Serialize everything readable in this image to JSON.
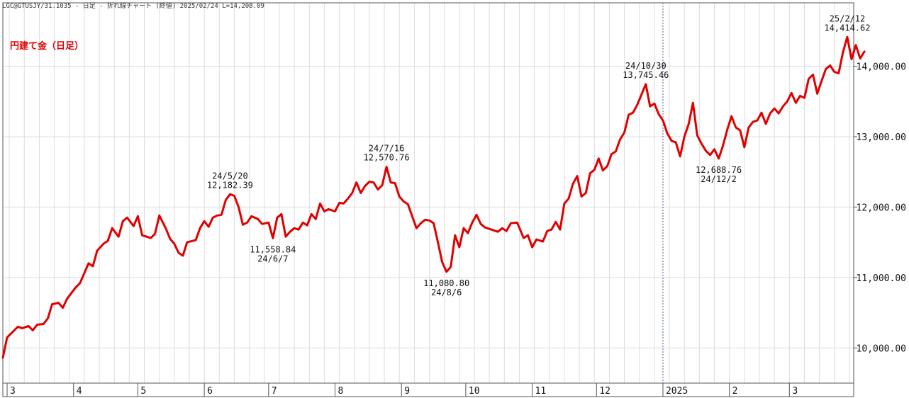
{
  "header": {
    "info": "LGC@GTUSJY/31.1035 - 日足 - 折れ線チャート (終値)  2025/02/24 L=14,208.09"
  },
  "chart_data": {
    "type": "line",
    "title": "円建て金（日足）",
    "ylim": [
      9500,
      14900
    ],
    "yticks": [
      10000,
      11000,
      12000,
      13000,
      14000
    ],
    "ytick_labels": [
      "10,000.00",
      "11,000.00",
      "12,000.00",
      "13,000.00",
      "14,000.00"
    ],
    "xlim": [
      "2024-02-28",
      "2025-03-31"
    ],
    "xticks": [
      {
        "date": "2024-03-01",
        "label": "3"
      },
      {
        "date": "2024-04-01",
        "label": "4"
      },
      {
        "date": "2024-05-01",
        "label": "5"
      },
      {
        "date": "2024-06-01",
        "label": "6"
      },
      {
        "date": "2024-07-01",
        "label": "7"
      },
      {
        "date": "2024-08-01",
        "label": "8"
      },
      {
        "date": "2024-09-01",
        "label": "9"
      },
      {
        "date": "2024-10-01",
        "label": "10"
      },
      {
        "date": "2024-11-01",
        "label": "11"
      },
      {
        "date": "2024-12-01",
        "label": "12"
      },
      {
        "date": "2025-01-01",
        "label": "2025"
      },
      {
        "date": "2025-02-01",
        "label": "2"
      },
      {
        "date": "2025-03-01",
        "label": "3"
      }
    ],
    "year_divider": "2025-01-01",
    "grid": true,
    "line_color": "#e00000",
    "series": [
      {
        "points": [
          [
            "2024-02-28",
            9860
          ],
          [
            "2024-03-01",
            10150
          ],
          [
            "2024-03-04",
            10240
          ],
          [
            "2024-03-06",
            10300
          ],
          [
            "2024-03-08",
            10280
          ],
          [
            "2024-03-11",
            10310
          ],
          [
            "2024-03-13",
            10250
          ],
          [
            "2024-03-15",
            10330
          ],
          [
            "2024-03-18",
            10340
          ],
          [
            "2024-03-20",
            10420
          ],
          [
            "2024-03-22",
            10620
          ],
          [
            "2024-03-25",
            10640
          ],
          [
            "2024-03-27",
            10570
          ],
          [
            "2024-03-29",
            10700
          ],
          [
            "2024-04-02",
            10860
          ],
          [
            "2024-04-04",
            10920
          ],
          [
            "2024-04-08",
            11200
          ],
          [
            "2024-04-10",
            11160
          ],
          [
            "2024-04-12",
            11380
          ],
          [
            "2024-04-15",
            11480
          ],
          [
            "2024-04-17",
            11520
          ],
          [
            "2024-04-19",
            11700
          ],
          [
            "2024-04-22",
            11580
          ],
          [
            "2024-04-24",
            11800
          ],
          [
            "2024-04-26",
            11850
          ],
          [
            "2024-04-29",
            11730
          ],
          [
            "2024-05-01",
            11870
          ],
          [
            "2024-05-03",
            11600
          ],
          [
            "2024-05-07",
            11560
          ],
          [
            "2024-05-09",
            11620
          ],
          [
            "2024-05-11",
            11880
          ],
          [
            "2024-05-14",
            11700
          ],
          [
            "2024-05-16",
            11550
          ],
          [
            "2024-05-18",
            11480
          ],
          [
            "2024-05-20",
            11350
          ],
          [
            "2024-05-22",
            11310
          ],
          [
            "2024-05-24",
            11500
          ],
          [
            "2024-05-28",
            11530
          ],
          [
            "2024-05-30",
            11700
          ],
          [
            "2024-06-01",
            11800
          ],
          [
            "2024-06-03",
            11720
          ],
          [
            "2024-06-05",
            11850
          ],
          [
            "2024-06-07",
            11880
          ],
          [
            "2024-06-09",
            11890
          ],
          [
            "2024-06-11",
            12100
          ],
          [
            "2024-06-13",
            12182.39
          ],
          [
            "2024-06-15",
            12160
          ],
          [
            "2024-06-17",
            12000
          ],
          [
            "2024-06-19",
            11750
          ],
          [
            "2024-06-21",
            11780
          ],
          [
            "2024-06-23",
            11870
          ],
          [
            "2024-06-26",
            11830
          ],
          [
            "2024-06-28",
            11760
          ],
          [
            "2024-07-01",
            11780
          ],
          [
            "2024-07-03",
            11558.84
          ],
          [
            "2024-07-05",
            11850
          ],
          [
            "2024-07-07",
            11900
          ],
          [
            "2024-07-09",
            11580
          ],
          [
            "2024-07-11",
            11650
          ],
          [
            "2024-07-13",
            11700
          ],
          [
            "2024-07-15",
            11680
          ],
          [
            "2024-07-17",
            11780
          ],
          [
            "2024-07-19",
            11740
          ],
          [
            "2024-07-21",
            11900
          ],
          [
            "2024-07-23",
            11830
          ],
          [
            "2024-07-25",
            12050
          ],
          [
            "2024-07-27",
            11940
          ],
          [
            "2024-07-29",
            11970
          ],
          [
            "2024-08-01",
            11940
          ],
          [
            "2024-08-03",
            12060
          ],
          [
            "2024-08-05",
            12050
          ],
          [
            "2024-08-07",
            12120
          ],
          [
            "2024-08-09",
            12200
          ],
          [
            "2024-08-11",
            12350
          ],
          [
            "2024-08-13",
            12200
          ],
          [
            "2024-08-15",
            12300
          ],
          [
            "2024-08-17",
            12360
          ],
          [
            "2024-08-19",
            12350
          ],
          [
            "2024-08-21",
            12250
          ],
          [
            "2024-08-23",
            12310
          ],
          [
            "2024-08-25",
            12570.76
          ],
          [
            "2024-08-27",
            12350
          ],
          [
            "2024-08-29",
            12340
          ],
          [
            "2024-08-31",
            12150
          ],
          [
            "2024-09-02",
            12080
          ],
          [
            "2024-09-04",
            12040
          ],
          [
            "2024-09-06",
            11870
          ],
          [
            "2024-09-08",
            11700
          ],
          [
            "2024-09-10",
            11770
          ],
          [
            "2024-09-12",
            11820
          ],
          [
            "2024-09-14",
            11810
          ],
          [
            "2024-09-16",
            11770
          ],
          [
            "2024-09-18",
            11500
          ],
          [
            "2024-09-20",
            11220
          ],
          [
            "2024-09-22",
            11080.8
          ],
          [
            "2024-09-24",
            11150
          ],
          [
            "2024-09-26",
            11600
          ],
          [
            "2024-09-28",
            11430
          ],
          [
            "2024-09-30",
            11700
          ],
          [
            "2024-10-02",
            11630
          ],
          [
            "2024-10-04",
            11780
          ],
          [
            "2024-10-06",
            11890
          ],
          [
            "2024-10-08",
            11760
          ],
          [
            "2024-10-10",
            11710
          ],
          [
            "2024-10-13",
            11680
          ],
          [
            "2024-10-16",
            11650
          ],
          [
            "2024-10-18",
            11700
          ],
          [
            "2024-10-20",
            11660
          ],
          [
            "2024-10-22",
            11770
          ],
          [
            "2024-10-25",
            11780
          ],
          [
            "2024-10-28",
            11560
          ],
          [
            "2024-10-30",
            11600
          ],
          [
            "2024-11-01",
            11430
          ],
          [
            "2024-11-03",
            11540
          ],
          [
            "2024-11-06",
            11510
          ],
          [
            "2024-11-08",
            11660
          ],
          [
            "2024-11-10",
            11680
          ],
          [
            "2024-11-12",
            11790
          ],
          [
            "2024-11-14",
            11680
          ],
          [
            "2024-11-16",
            12050
          ],
          [
            "2024-11-18",
            12120
          ],
          [
            "2024-11-20",
            12330
          ],
          [
            "2024-11-22",
            12440
          ],
          [
            "2024-11-24",
            12150
          ],
          [
            "2024-11-26",
            12200
          ],
          [
            "2024-11-28",
            12480
          ],
          [
            "2024-11-30",
            12530
          ],
          [
            "2024-12-02",
            12690
          ],
          [
            "2024-12-04",
            12520
          ],
          [
            "2024-12-06",
            12580
          ],
          [
            "2024-12-08",
            12750
          ],
          [
            "2024-12-10",
            12790
          ],
          [
            "2024-12-12",
            12960
          ],
          [
            "2024-12-14",
            13060
          ],
          [
            "2024-12-16",
            13310
          ],
          [
            "2024-12-18",
            13340
          ],
          [
            "2024-12-20",
            13450
          ],
          [
            "2024-12-22",
            13600
          ],
          [
            "2024-12-24",
            13745.46
          ],
          [
            "2024-12-26",
            13430
          ],
          [
            "2024-12-28",
            13470
          ],
          [
            "2024-12-30",
            13320
          ],
          [
            "2025-01-01",
            13230
          ],
          [
            "2025-01-03",
            13050
          ],
          [
            "2025-01-05",
            12940
          ],
          [
            "2025-01-07",
            12920
          ],
          [
            "2025-01-09",
            12720
          ],
          [
            "2025-01-11",
            13000
          ],
          [
            "2025-01-13",
            13180
          ],
          [
            "2025-01-15",
            13480
          ],
          [
            "2025-01-17",
            13020
          ],
          [
            "2025-01-19",
            12900
          ],
          [
            "2025-01-21",
            12800
          ],
          [
            "2025-01-23",
            12740
          ],
          [
            "2025-01-25",
            12820
          ],
          [
            "2025-01-27",
            12688.76
          ],
          [
            "2025-01-29",
            12870
          ],
          [
            "2025-01-31",
            13100
          ],
          [
            "2025-02-02",
            13290
          ],
          [
            "2025-02-04",
            13130
          ],
          [
            "2025-02-06",
            13090
          ],
          [
            "2025-02-08",
            12850
          ],
          [
            "2025-02-10",
            13130
          ],
          [
            "2025-02-12",
            13210
          ],
          [
            "2025-02-14",
            13230
          ],
          [
            "2025-02-16",
            13340
          ],
          [
            "2025-02-18",
            13180
          ],
          [
            "2025-02-20",
            13330
          ],
          [
            "2025-02-22",
            13400
          ],
          [
            "2025-02-24",
            13330
          ],
          [
            "2025-02-26",
            13430
          ],
          [
            "2025-02-28",
            13500
          ],
          [
            "2025-03-02",
            13620
          ],
          [
            "2025-03-04",
            13480
          ],
          [
            "2025-03-06",
            13580
          ],
          [
            "2025-03-08",
            13550
          ],
          [
            "2025-03-10",
            13820
          ],
          [
            "2025-03-12",
            13880
          ],
          [
            "2025-03-14",
            13610
          ],
          [
            "2025-03-16",
            13790
          ],
          [
            "2025-03-18",
            13960
          ],
          [
            "2025-03-20",
            14010
          ],
          [
            "2025-03-22",
            13920
          ],
          [
            "2025-03-24",
            13900
          ],
          [
            "2025-03-26",
            14200
          ],
          [
            "2025-03-28",
            14414.62
          ],
          [
            "2025-03-30",
            14100
          ],
          [
            "2025-04-01",
            14300
          ],
          [
            "2025-04-03",
            14110
          ],
          [
            "2025-04-05",
            14208.09
          ]
        ]
      }
    ],
    "annotations": [
      {
        "lines": [
          "24/5/20",
          "12,182.39"
        ],
        "at": "2024-06-13",
        "value": 12182.39,
        "pos": "above"
      },
      {
        "lines": [
          "11,558.84",
          "24/6/7"
        ],
        "at": "2024-07-03",
        "value": 11558.84,
        "pos": "below"
      },
      {
        "lines": [
          "24/7/16",
          "12,570.76"
        ],
        "at": "2024-08-25",
        "value": 12570.76,
        "pos": "above"
      },
      {
        "lines": [
          "11,080.80",
          "24/8/6"
        ],
        "at": "2024-09-22",
        "value": 11080.8,
        "pos": "below"
      },
      {
        "lines": [
          "24/10/30",
          "13,745.46"
        ],
        "at": "2024-12-24",
        "value": 13745.46,
        "pos": "above"
      },
      {
        "lines": [
          "12,688.76",
          "24/12/2"
        ],
        "at": "2025-01-27",
        "value": 12688.76,
        "pos": "below"
      },
      {
        "lines": [
          "25/2/12",
          "14,414.62"
        ],
        "at": "2025-03-28",
        "value": 14414.62,
        "pos": "above"
      }
    ]
  }
}
